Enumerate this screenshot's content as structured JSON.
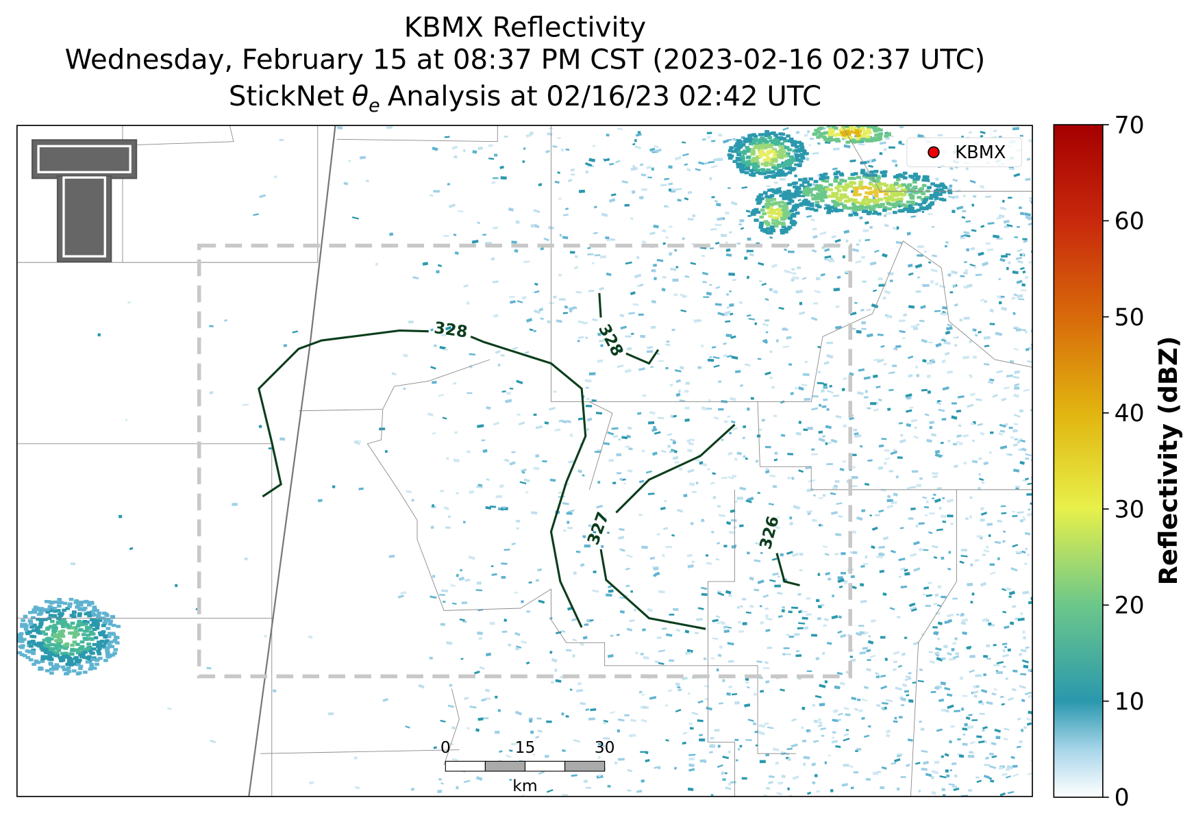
{
  "title": {
    "line1": "KBMX Reflectivity",
    "line2": "Wednesday, February 15 at 08:37 PM CST (2023-02-16 02:37 UTC)",
    "line3": {
      "prefix": "StickNet",
      "symbol": "θ",
      "subscript": "e",
      "suffix": "Analysis at 02/16/23 02:42 UTC"
    }
  },
  "legend": {
    "label": "KBMX"
  },
  "colorbar": {
    "label": "Reflectivity (dBZ)",
    "lim": [
      0,
      70
    ],
    "ticks": [
      0,
      10,
      20,
      30,
      40,
      50,
      60,
      70
    ]
  },
  "contours": [
    {
      "label": "328"
    },
    {
      "label": "328"
    },
    {
      "label": "327"
    },
    {
      "label": "326"
    }
  ],
  "scale_bar": {
    "ticks": [
      "0",
      "15",
      "30"
    ],
    "unit": "km"
  }
}
